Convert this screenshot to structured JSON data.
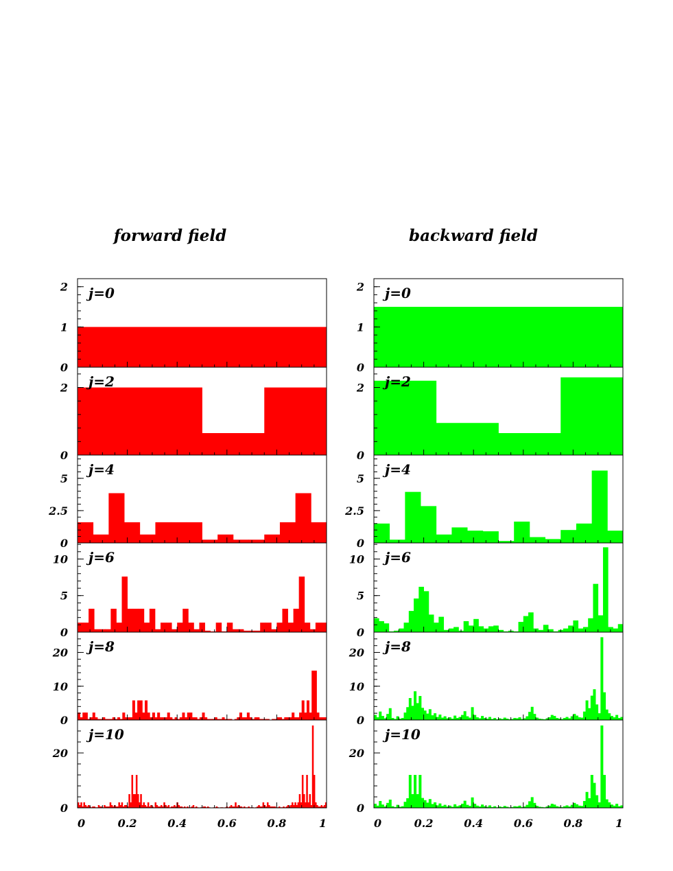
{
  "titles": {
    "left": "forward field",
    "right": "backward field"
  },
  "colors": {
    "forward": "#ff0000",
    "backward": "#00ff00",
    "axis": "#000000"
  },
  "chart_data": [
    {
      "type": "bar",
      "title": "forward field",
      "color": "#ff0000",
      "xlim": [
        0,
        1
      ],
      "x_ticks": [
        0,
        0.2,
        0.4,
        0.6,
        0.8,
        1
      ],
      "x_tick_labels": [
        "0",
        "0.2",
        "0.4",
        "0.6",
        "0.8",
        "1"
      ],
      "panels": [
        {
          "label": "j=0",
          "ylim": [
            0,
            2.2
          ],
          "y_ticks": [
            0,
            1,
            2
          ],
          "y_tick_labels": [
            "0",
            "1",
            "2"
          ],
          "values": [
            1
          ]
        },
        {
          "label": "j=2",
          "ylim": [
            0,
            2.6
          ],
          "y_ticks": [
            0,
            2
          ],
          "y_tick_labels": [
            "0",
            "2"
          ],
          "values": [
            2,
            2,
            0.65,
            2
          ]
        },
        {
          "label": "j=4",
          "ylim": [
            0,
            6.8
          ],
          "y_ticks": [
            0,
            2.5,
            5
          ],
          "y_tick_labels": [
            "0",
            "2.5",
            "5"
          ],
          "values": [
            1.6,
            0.65,
            3.85,
            1.6,
            0.65,
            1.6,
            1.6,
            1.6,
            0.25,
            0.65,
            0.25,
            0.25,
            0.65,
            1.6,
            3.85,
            1.6
          ]
        },
        {
          "label": "j=6",
          "ylim": [
            0,
            12.2
          ],
          "y_ticks": [
            0,
            5,
            10
          ],
          "y_tick_labels": [
            "0",
            "5",
            "10"
          ],
          "values": [
            1.3,
            1.3,
            3.2,
            0.4,
            0.4,
            0.4,
            3.2,
            1.3,
            7.6,
            3.2,
            3.2,
            3.2,
            1.3,
            3.2,
            0.4,
            1.3,
            1.3,
            0.4,
            1.3,
            3.2,
            1.3,
            0.4,
            1.3,
            0.2,
            0.1,
            1.3,
            0.1,
            1.3,
            0.4,
            0.4,
            0.2,
            0.2,
            0.2,
            1.3,
            1.3,
            0.4,
            1.3,
            3.2,
            1.3,
            3.2,
            7.6,
            1.3,
            0.4,
            1.3,
            1.3
          ]
        },
        {
          "label": "j=8",
          "ylim": [
            0,
            26
          ],
          "y_ticks": [
            0,
            10,
            20
          ],
          "y_tick_labels": [
            "0",
            "10",
            "20"
          ],
          "values": [
            2.2,
            0.8,
            2.2,
            2.2,
            0.3,
            0.8,
            2.2,
            0.8,
            0.3,
            0.3,
            0.8,
            0.3,
            0.3,
            0.3,
            0.8,
            0.3,
            0.8,
            0.3,
            2.2,
            0.8,
            0.8,
            0.8,
            5.8,
            2.2,
            5.8,
            5.8,
            2.2,
            5.8,
            2.2,
            0.8,
            2.2,
            0.8,
            2.2,
            0.8,
            0.8,
            0.8,
            2.2,
            0.8,
            0.3,
            0.8,
            0.3,
            0.8,
            2.2,
            0.8,
            2.2,
            2.2,
            0.8,
            0.8,
            0.3,
            0.8,
            2.2,
            0.8,
            0.3,
            0.3,
            0.3,
            0.8,
            0.3,
            0.3,
            0.8,
            0.3,
            0.3,
            0.3,
            0.1,
            0.3,
            0.8,
            2.2,
            0.8,
            0.8,
            2.2,
            0.8,
            0.3,
            0.8,
            0.8,
            0.3,
            0.3,
            0.3,
            0.3,
            0.1,
            0.3,
            0.3,
            0.8,
            0.8,
            0.3,
            0.8,
            0.8,
            0.8,
            2.2,
            0.8,
            0.8,
            2.2,
            5.8,
            2.2,
            5.8,
            2.2,
            14.6,
            14.6,
            2.2,
            0.8,
            0.8,
            0.8
          ]
        },
        {
          "label": "j=10",
          "ylim": [
            0,
            32
          ],
          "y_ticks": [
            0,
            20
          ],
          "y_tick_labels": [
            "0",
            "20"
          ],
          "values": [
            2,
            1,
            2,
            0.5,
            2,
            1,
            0.5,
            1,
            0.5,
            0.2,
            0.5,
            0.5,
            0.2,
            0.2,
            1,
            0.5,
            0.5,
            0.2,
            1,
            0.5,
            0.5,
            0.5,
            2,
            1,
            0.5,
            1,
            0.5,
            0.5,
            2,
            1,
            2,
            0.5,
            1,
            1,
            0.5,
            5,
            2,
            12,
            5,
            5,
            12,
            5,
            2,
            5,
            1,
            2,
            1,
            0.5,
            2,
            0.5,
            1,
            0.5,
            0.2,
            2,
            1,
            0.5,
            0.5,
            1,
            0.5,
            2,
            1,
            0.5,
            1,
            0.2,
            0.5,
            0.5,
            1,
            0.5,
            2,
            1,
            0.5,
            0.5,
            0.2,
            0.5,
            0.2,
            0.5,
            0.2,
            0.2,
            0.5,
            1,
            0.2,
            0.5,
            0.2,
            0.1,
            0.2,
            0.2,
            0.5,
            0.5,
            0.2,
            0.5,
            0.2,
            0.1,
            0.1,
            0.2,
            0.2,
            0.5,
            0.2,
            0.1,
            0.2,
            0.2,
            0.1,
            0.2,
            0.5,
            0.2,
            0.5,
            1,
            0.5,
            0.5,
            2,
            0.5,
            1,
            0.5,
            0.5,
            0.2,
            0.5,
            0.2,
            0.2,
            0.5,
            0.2,
            0.2,
            0.2,
            0.1,
            0.2,
            0.5,
            1,
            0.5,
            0.5,
            2,
            1,
            0.5,
            2,
            1,
            0.5,
            0.5,
            0.5,
            0.5,
            0.2,
            0.2,
            0.5,
            0.2,
            0.2,
            0.5,
            0.2,
            0.5,
            1,
            0.5,
            1,
            2,
            1,
            2,
            1,
            2,
            5,
            2,
            12,
            5,
            2,
            12,
            2,
            5,
            1,
            30,
            12,
            2,
            1,
            0.5,
            0.5,
            1,
            0.5,
            1,
            2
          ]
        }
      ]
    },
    {
      "type": "bar",
      "title": "backward field",
      "color": "#00ff00",
      "xlim": [
        0,
        1
      ],
      "x_ticks": [
        0,
        0.2,
        0.4,
        0.6,
        0.8,
        1
      ],
      "x_tick_labels": [
        "0",
        "0.2",
        "0.4",
        "0.6",
        "0.8",
        "1"
      ],
      "panels": [
        {
          "label": "j=0",
          "ylim": [
            0,
            2.2
          ],
          "y_ticks": [
            0,
            1,
            2
          ],
          "y_tick_labels": [
            "0",
            "1",
            "2"
          ],
          "values": [
            1.5
          ]
        },
        {
          "label": "j=2",
          "ylim": [
            0,
            2.6
          ],
          "y_ticks": [
            0,
            2
          ],
          "y_tick_labels": [
            "0",
            "2"
          ],
          "values": [
            2.2,
            0.95,
            0.65,
            2.3
          ]
        },
        {
          "label": "j=4",
          "ylim": [
            0,
            6.8
          ],
          "y_ticks": [
            0,
            2.5,
            5
          ],
          "y_tick_labels": [
            "0",
            "2.5",
            "5"
          ],
          "values": [
            1.5,
            0.25,
            3.95,
            2.85,
            0.65,
            1.2,
            0.95,
            0.9,
            0.15,
            1.65,
            0.45,
            0.3,
            1.0,
            1.5,
            5.6,
            0.95
          ]
        },
        {
          "label": "j=6",
          "ylim": [
            0,
            12.2
          ],
          "y_ticks": [
            0,
            5,
            10
          ],
          "y_tick_labels": [
            "0",
            "5",
            "10"
          ],
          "values": [
            1.9,
            1.5,
            1.2,
            0.1,
            0.2,
            0.5,
            1.3,
            2.9,
            4.6,
            6.2,
            5.6,
            2.4,
            1.3,
            2.1,
            0.3,
            0.5,
            0.7,
            0.2,
            1.5,
            0.9,
            1.8,
            0.8,
            0.5,
            0.8,
            0.9,
            0.3,
            0.1,
            0.2,
            0.1,
            1.4,
            2.2,
            2.7,
            0.5,
            0.3,
            1.0,
            0.4,
            0.1,
            0.3,
            0.5,
            0.9,
            1.6,
            0.5,
            0.7,
            1.9,
            6.6,
            2.3,
            11.6,
            0.7,
            0.5,
            1.1
          ]
        },
        {
          "label": "j=8",
          "ylim": [
            0,
            26
          ],
          "y_ticks": [
            0,
            10,
            20
          ],
          "y_tick_labels": [
            "0",
            "10",
            "20"
          ],
          "values": [
            1.5,
            0.8,
            2.5,
            1.2,
            0.5,
            1.8,
            3.5,
            0.6,
            0.3,
            1.1,
            0.4,
            0.6,
            2.2,
            3.8,
            6.5,
            4.2,
            8.5,
            5.0,
            7.1,
            3.6,
            2.8,
            1.9,
            3.2,
            1.4,
            2.0,
            0.9,
            1.6,
            0.7,
            1.1,
            0.5,
            0.8,
            0.4,
            1.3,
            0.6,
            0.9,
            1.5,
            2.6,
            1.1,
            0.7,
            3.8,
            1.5,
            0.8,
            0.5,
            1.2,
            0.6,
            0.4,
            0.9,
            0.3,
            0.6,
            0.2,
            0.5,
            0.3,
            0.7,
            0.4,
            0.2,
            0.3,
            0.6,
            0.5,
            0.8,
            0.3,
            0.5,
            1.1,
            2.4,
            3.9,
            1.8,
            0.7,
            0.4,
            0.3,
            0.2,
            0.5,
            0.8,
            1.5,
            1.2,
            0.6,
            0.4,
            0.3,
            0.6,
            0.9,
            0.5,
            1.1,
            1.8,
            1.3,
            0.8,
            0.7,
            2.5,
            5.8,
            3.5,
            7.2,
            9.1,
            4.6,
            2.0,
            24.5,
            8.2,
            3.1,
            2.0,
            1.2,
            0.8,
            1.5,
            0.6,
            0.9
          ]
        },
        {
          "label": "j=10",
          "ylim": [
            0,
            32
          ],
          "y_ticks": [
            0,
            20
          ],
          "y_tick_labels": [
            "0",
            "20"
          ],
          "values": [
            1.5,
            0.8,
            2.5,
            1.2,
            0.5,
            1.8,
            3.0,
            0.6,
            0.3,
            1.1,
            0.4,
            0.6,
            2.2,
            3.5,
            12,
            5.0,
            12,
            5.0,
            12,
            3.6,
            2.8,
            1.9,
            3.2,
            1.4,
            2.0,
            0.9,
            1.6,
            0.7,
            1.1,
            0.5,
            0.8,
            0.4,
            1.3,
            0.6,
            0.9,
            1.5,
            2.6,
            1.1,
            0.7,
            3.8,
            1.5,
            0.8,
            0.5,
            1.2,
            0.6,
            0.4,
            0.9,
            0.3,
            0.6,
            0.2,
            0.5,
            0.3,
            0.7,
            0.4,
            0.2,
            0.3,
            0.6,
            0.5,
            0.8,
            0.3,
            0.5,
            1.1,
            2.4,
            3.9,
            1.8,
            0.7,
            0.4,
            0.3,
            0.2,
            0.5,
            0.8,
            1.5,
            1.2,
            0.6,
            0.4,
            0.3,
            0.6,
            0.9,
            0.5,
            1.1,
            1.8,
            1.3,
            0.8,
            0.7,
            2.5,
            5.8,
            3.5,
            12,
            9.1,
            4.6,
            2.0,
            30,
            12,
            3.1,
            2.0,
            1.2,
            0.8,
            1.5,
            0.6,
            0.9
          ]
        }
      ]
    }
  ]
}
